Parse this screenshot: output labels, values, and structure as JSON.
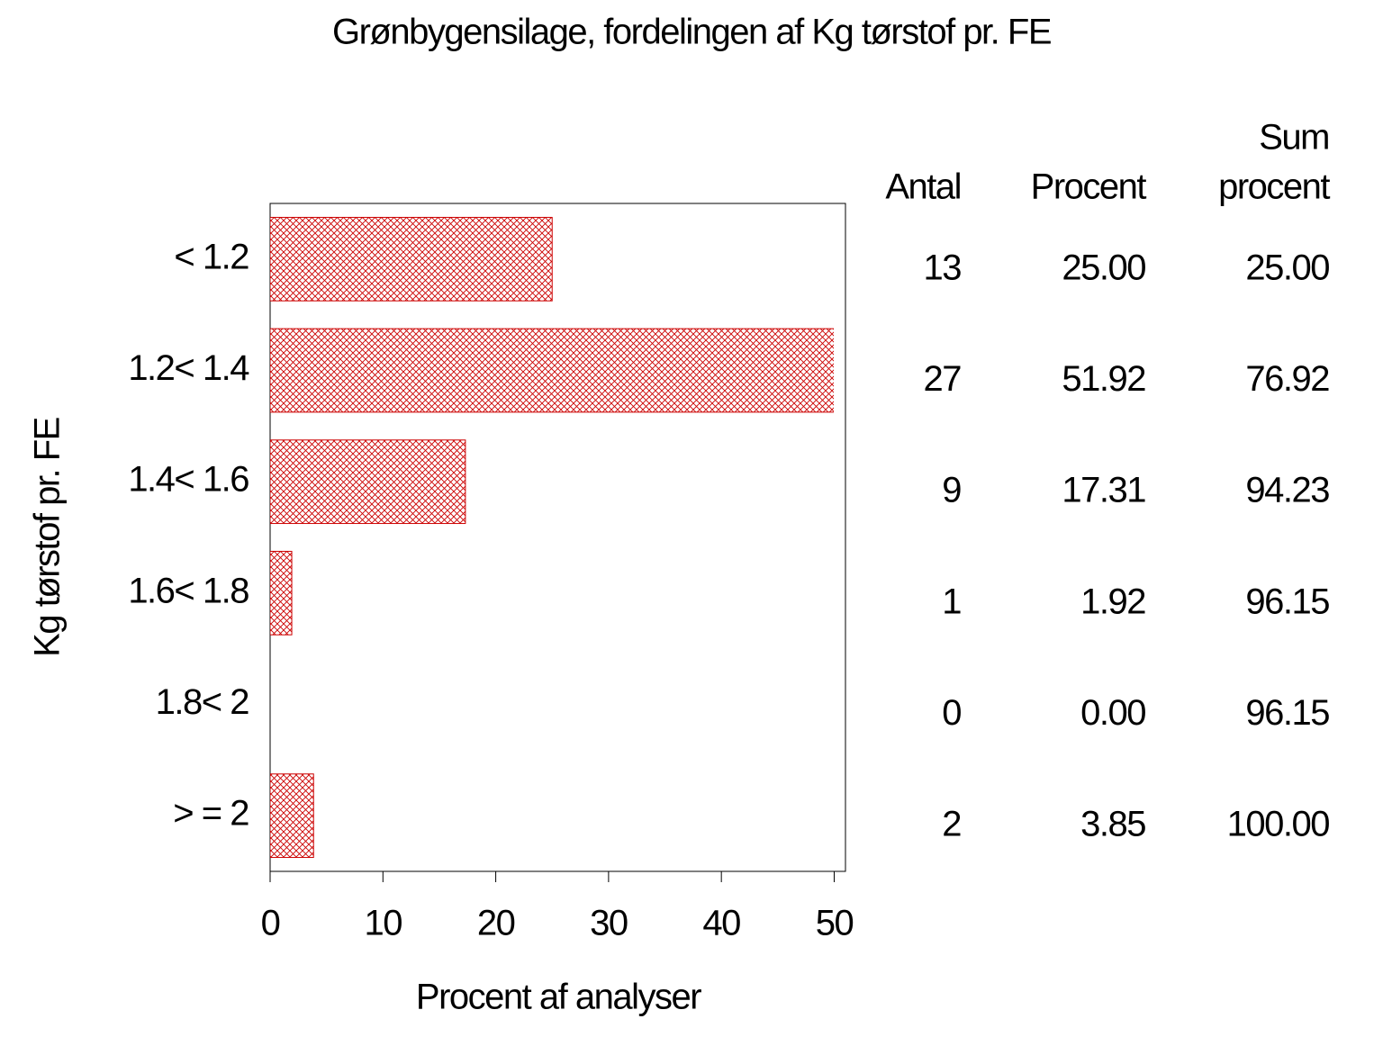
{
  "chart_data": {
    "type": "hbar",
    "title": "Grønbygensilage, fordelingen af Kg tørstof pr. FE",
    "x_label": "Procent af analyser",
    "y_label": "Kg tørstof pr. FE",
    "categories": [
      "< 1.2",
      "1.2< 1.4",
      "1.4< 1.6",
      "1.6< 1.8",
      "1.8< 2",
      "> = 2"
    ],
    "values": [
      25,
      51.92,
      17.31,
      1.92,
      0,
      3.85
    ],
    "value_labels": [
      "25.00",
      "51.92",
      "17.31",
      "1.92",
      "0.00",
      "3.85"
    ],
    "counts": [
      13,
      27,
      9,
      1,
      0,
      2
    ],
    "cumulative": [
      25,
      76.92,
      94.23,
      96.15,
      96.15,
      100
    ],
    "cumulative_labels": [
      "25.00",
      "76.92",
      "94.23",
      "96.15",
      "96.15",
      "100.00"
    ],
    "column_headers": [
      [
        "Antal"
      ],
      [
        "Procent"
      ],
      [
        "Sum",
        "procent"
      ]
    ],
    "color": "#cc0000",
    "xlim": [
      0,
      51
    ],
    "xticks": [
      0,
      10,
      20,
      30,
      40,
      50
    ]
  }
}
